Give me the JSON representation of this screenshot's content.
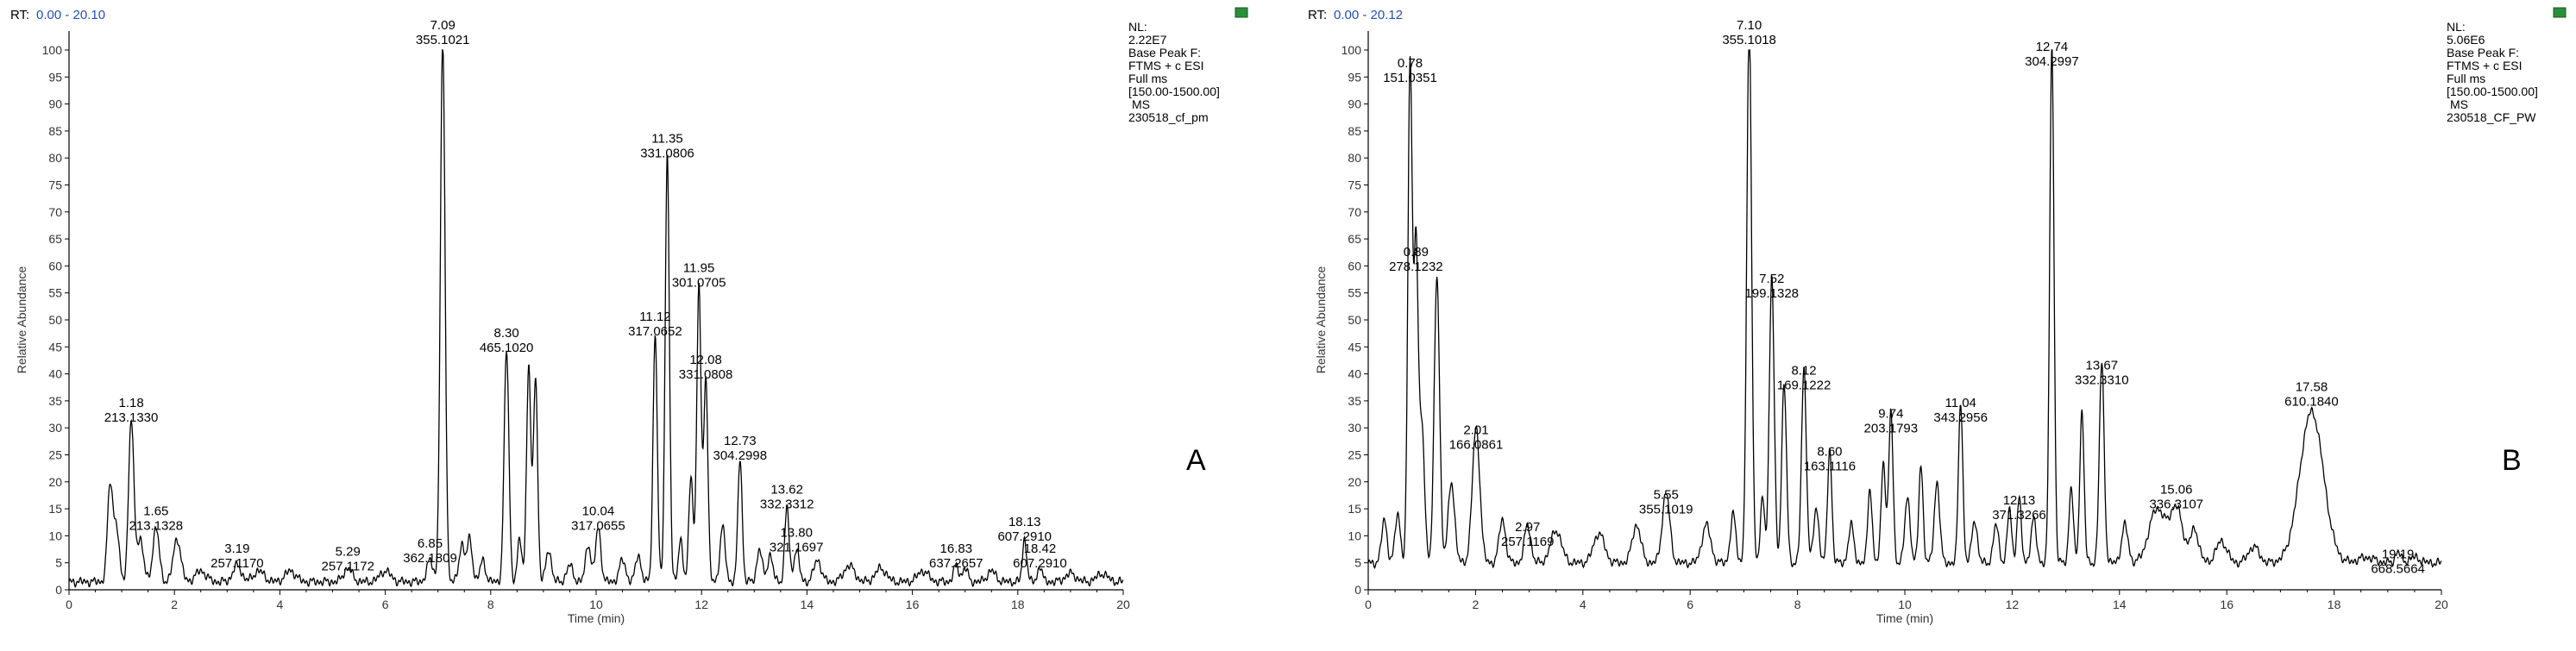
{
  "colors": {
    "trace": "#000000",
    "rt": "#1f4fbf",
    "frame": "#000000",
    "tick_label": "#333333"
  },
  "chart_data": [
    {
      "type": "line",
      "panel_letter": "A",
      "rt_label": "RT:",
      "rt_range": "0.00 - 20.10",
      "xlabel": "Time (min)",
      "ylabel": "Relative Abundance",
      "xlim": [
        0,
        20
      ],
      "ylim": [
        0,
        100
      ],
      "x_ticks": [
        "0",
        "2",
        "4",
        "6",
        "8",
        "10",
        "12",
        "14",
        "16",
        "18",
        "20"
      ],
      "y_ticks": [
        "0",
        "5",
        "10",
        "15",
        "20",
        "25",
        "30",
        "35",
        "40",
        "45",
        "50",
        "55",
        "60",
        "65",
        "70",
        "75",
        "80",
        "85",
        "90",
        "95",
        "100"
      ],
      "info": [
        "NL:",
        "2.22E7",
        "Base Peak F:",
        "FTMS + c ESI",
        "Full ms",
        "[150.00-1500.00]",
        "MS",
        "230518_cf_pm"
      ],
      "baseline": 1.5,
      "peaks": [
        {
          "x": 0.78,
          "y": 18,
          "w": 0.05
        },
        {
          "x": 0.9,
          "y": 10,
          "w": 0.05
        },
        {
          "x": 1.18,
          "y": 30,
          "w": 0.05
        },
        {
          "x": 1.35,
          "y": 8,
          "w": 0.06
        },
        {
          "x": 1.65,
          "y": 10,
          "w": 0.06
        },
        {
          "x": 2.05,
          "y": 8,
          "w": 0.07
        },
        {
          "x": 2.5,
          "y": 2,
          "w": 0.1
        },
        {
          "x": 3.19,
          "y": 3,
          "w": 0.08
        },
        {
          "x": 3.6,
          "y": 2,
          "w": 0.1
        },
        {
          "x": 4.2,
          "y": 2,
          "w": 0.1
        },
        {
          "x": 5.29,
          "y": 2.5,
          "w": 0.08
        },
        {
          "x": 6.0,
          "y": 2,
          "w": 0.1
        },
        {
          "x": 6.85,
          "y": 4,
          "w": 0.06
        },
        {
          "x": 7.09,
          "y": 100,
          "w": 0.045
        },
        {
          "x": 7.45,
          "y": 7,
          "w": 0.05
        },
        {
          "x": 7.6,
          "y": 8,
          "w": 0.05
        },
        {
          "x": 7.85,
          "y": 4,
          "w": 0.05
        },
        {
          "x": 8.3,
          "y": 43,
          "w": 0.045
        },
        {
          "x": 8.55,
          "y": 8,
          "w": 0.04
        },
        {
          "x": 8.72,
          "y": 40,
          "w": 0.04
        },
        {
          "x": 8.85,
          "y": 38,
          "w": 0.04
        },
        {
          "x": 9.1,
          "y": 6,
          "w": 0.05
        },
        {
          "x": 9.5,
          "y": 3,
          "w": 0.06
        },
        {
          "x": 9.85,
          "y": 7,
          "w": 0.05
        },
        {
          "x": 10.04,
          "y": 10,
          "w": 0.05
        },
        {
          "x": 10.5,
          "y": 4,
          "w": 0.06
        },
        {
          "x": 10.8,
          "y": 5,
          "w": 0.05
        },
        {
          "x": 11.12,
          "y": 46,
          "w": 0.04
        },
        {
          "x": 11.35,
          "y": 79,
          "w": 0.04
        },
        {
          "x": 11.6,
          "y": 8,
          "w": 0.04
        },
        {
          "x": 11.8,
          "y": 20,
          "w": 0.04
        },
        {
          "x": 11.95,
          "y": 55,
          "w": 0.04
        },
        {
          "x": 12.08,
          "y": 38,
          "w": 0.04
        },
        {
          "x": 12.4,
          "y": 10,
          "w": 0.05
        },
        {
          "x": 12.73,
          "y": 23,
          "w": 0.04
        },
        {
          "x": 13.1,
          "y": 6,
          "w": 0.05
        },
        {
          "x": 13.3,
          "y": 5,
          "w": 0.05
        },
        {
          "x": 13.62,
          "y": 14,
          "w": 0.04
        },
        {
          "x": 13.8,
          "y": 6,
          "w": 0.05
        },
        {
          "x": 14.2,
          "y": 4,
          "w": 0.07
        },
        {
          "x": 14.8,
          "y": 3,
          "w": 0.1
        },
        {
          "x": 15.4,
          "y": 2.5,
          "w": 0.1
        },
        {
          "x": 16.2,
          "y": 2,
          "w": 0.1
        },
        {
          "x": 16.83,
          "y": 3,
          "w": 0.05
        },
        {
          "x": 17.0,
          "y": 2.5,
          "w": 0.05
        },
        {
          "x": 17.5,
          "y": 2,
          "w": 0.08
        },
        {
          "x": 18.13,
          "y": 8,
          "w": 0.04
        },
        {
          "x": 18.42,
          "y": 3,
          "w": 0.04
        },
        {
          "x": 19.0,
          "y": 1.5,
          "w": 0.1
        },
        {
          "x": 19.6,
          "y": 1.5,
          "w": 0.1
        }
      ],
      "annotations": [
        {
          "x": 1.18,
          "y": 30,
          "rt": "1.18",
          "mz": "213.1330"
        },
        {
          "x": 1.65,
          "y": 10,
          "rt": "1.65",
          "mz": "213.1328"
        },
        {
          "x": 3.19,
          "y": 3,
          "rt": "3.19",
          "mz": "257.1170"
        },
        {
          "x": 5.29,
          "y": 2.5,
          "rt": "5.29",
          "mz": "257.1172"
        },
        {
          "x": 6.85,
          "y": 4,
          "rt": "6.85",
          "mz": "362.1809"
        },
        {
          "x": 7.09,
          "y": 100,
          "rt": "7.09",
          "mz": "355.1021"
        },
        {
          "x": 8.3,
          "y": 43,
          "rt": "8.30",
          "mz": "465.1020"
        },
        {
          "x": 10.04,
          "y": 10,
          "rt": "10.04",
          "mz": "317.0655"
        },
        {
          "x": 11.12,
          "y": 46,
          "rt": "11.12",
          "mz": "317.0652"
        },
        {
          "x": 11.35,
          "y": 79,
          "rt": "11.35",
          "mz": "331.0806"
        },
        {
          "x": 11.95,
          "y": 55,
          "rt": "11.95",
          "mz": "301.0705"
        },
        {
          "x": 12.08,
          "y": 38,
          "rt": "12.08",
          "mz": "331.0808"
        },
        {
          "x": 12.73,
          "y": 23,
          "rt": "12.73",
          "mz": "304.2998"
        },
        {
          "x": 13.62,
          "y": 14,
          "rt": "13.62",
          "mz": "332.3312"
        },
        {
          "x": 13.8,
          "y": 6,
          "rt": "13.80",
          "mz": "321.1697"
        },
        {
          "x": 16.83,
          "y": 3,
          "rt": "16.83",
          "mz": "637.2657"
        },
        {
          "x": 18.13,
          "y": 8,
          "rt": "18.13",
          "mz": "607.2910"
        },
        {
          "x": 18.42,
          "y": 3,
          "rt": "18.42",
          "mz": "607.2910"
        }
      ]
    },
    {
      "type": "line",
      "panel_letter": "B",
      "rt_label": "RT:",
      "rt_range": "0.00 - 20.12",
      "xlabel": "Time (min)",
      "ylabel": "Relative Abundance",
      "xlim": [
        0,
        20
      ],
      "ylim": [
        0,
        100
      ],
      "x_ticks": [
        "0",
        "2",
        "4",
        "6",
        "8",
        "10",
        "12",
        "14",
        "16",
        "18",
        "20"
      ],
      "y_ticks": [
        "0",
        "5",
        "10",
        "15",
        "20",
        "25",
        "30",
        "35",
        "40",
        "45",
        "50",
        "55",
        "60",
        "65",
        "70",
        "75",
        "80",
        "85",
        "90",
        "95",
        "100"
      ],
      "info": [
        "NL:",
        "5.06E6",
        "Base Peak F:",
        "FTMS + c ESI",
        "Full ms",
        "[150.00-1500.00]",
        "MS",
        "230518_CF_PW"
      ],
      "baseline": 5,
      "peaks": [
        {
          "x": 0.3,
          "y": 8,
          "w": 0.05
        },
        {
          "x": 0.55,
          "y": 9,
          "w": 0.05
        },
        {
          "x": 0.78,
          "y": 93,
          "w": 0.04
        },
        {
          "x": 0.89,
          "y": 58,
          "w": 0.04
        },
        {
          "x": 1.0,
          "y": 25,
          "w": 0.05
        },
        {
          "x": 1.28,
          "y": 53,
          "w": 0.05
        },
        {
          "x": 1.55,
          "y": 15,
          "w": 0.06
        },
        {
          "x": 2.01,
          "y": 25,
          "w": 0.07
        },
        {
          "x": 2.5,
          "y": 8,
          "w": 0.06
        },
        {
          "x": 2.97,
          "y": 7,
          "w": 0.06
        },
        {
          "x": 3.5,
          "y": 6,
          "w": 0.1
        },
        {
          "x": 4.3,
          "y": 5.5,
          "w": 0.1
        },
        {
          "x": 5.0,
          "y": 7,
          "w": 0.08
        },
        {
          "x": 5.55,
          "y": 13,
          "w": 0.07
        },
        {
          "x": 6.3,
          "y": 7,
          "w": 0.08
        },
        {
          "x": 6.8,
          "y": 9,
          "w": 0.05
        },
        {
          "x": 7.1,
          "y": 100,
          "w": 0.045
        },
        {
          "x": 7.35,
          "y": 12,
          "w": 0.04
        },
        {
          "x": 7.52,
          "y": 53,
          "w": 0.045
        },
        {
          "x": 7.75,
          "y": 33,
          "w": 0.045
        },
        {
          "x": 8.12,
          "y": 36,
          "w": 0.045
        },
        {
          "x": 8.35,
          "y": 10,
          "w": 0.05
        },
        {
          "x": 8.6,
          "y": 21,
          "w": 0.04
        },
        {
          "x": 9.0,
          "y": 7,
          "w": 0.05
        },
        {
          "x": 9.35,
          "y": 14,
          "w": 0.04
        },
        {
          "x": 9.6,
          "y": 19,
          "w": 0.04
        },
        {
          "x": 9.74,
          "y": 28,
          "w": 0.04
        },
        {
          "x": 10.05,
          "y": 12,
          "w": 0.05
        },
        {
          "x": 10.3,
          "y": 18,
          "w": 0.04
        },
        {
          "x": 10.6,
          "y": 15,
          "w": 0.05
        },
        {
          "x": 11.04,
          "y": 30,
          "w": 0.04
        },
        {
          "x": 11.3,
          "y": 8,
          "w": 0.05
        },
        {
          "x": 11.7,
          "y": 7,
          "w": 0.05
        },
        {
          "x": 11.95,
          "y": 10,
          "w": 0.04
        },
        {
          "x": 12.13,
          "y": 12,
          "w": 0.04
        },
        {
          "x": 12.4,
          "y": 8,
          "w": 0.05
        },
        {
          "x": 12.74,
          "y": 96,
          "w": 0.04
        },
        {
          "x": 13.1,
          "y": 14,
          "w": 0.04
        },
        {
          "x": 13.3,
          "y": 28,
          "w": 0.04
        },
        {
          "x": 13.67,
          "y": 37,
          "w": 0.045
        },
        {
          "x": 14.1,
          "y": 7,
          "w": 0.06
        },
        {
          "x": 14.7,
          "y": 10,
          "w": 0.15
        },
        {
          "x": 15.06,
          "y": 10,
          "w": 0.12
        },
        {
          "x": 15.4,
          "y": 6,
          "w": 0.08
        },
        {
          "x": 15.9,
          "y": 4,
          "w": 0.1
        },
        {
          "x": 16.5,
          "y": 3,
          "w": 0.1
        },
        {
          "x": 17.58,
          "y": 28,
          "w": 0.22
        },
        {
          "x": 18.6,
          "y": 1,
          "w": 0.15
        },
        {
          "x": 19.19,
          "y": 2,
          "w": 0.05
        },
        {
          "x": 19.5,
          "y": 1,
          "w": 0.1
        }
      ],
      "annotations": [
        {
          "x": 0.78,
          "y": 93,
          "rt": "0.78",
          "mz": "151.0351"
        },
        {
          "x": 0.89,
          "y": 58,
          "rt": "0.89",
          "mz": "278.1232"
        },
        {
          "x": 2.01,
          "y": 25,
          "rt": "2.01",
          "mz": "166.0861"
        },
        {
          "x": 2.97,
          "y": 7,
          "rt": "2.97",
          "mz": "257.1169"
        },
        {
          "x": 5.55,
          "y": 13,
          "rt": "5.55",
          "mz": "355.1019"
        },
        {
          "x": 7.1,
          "y": 100,
          "rt": "7.10",
          "mz": "355.1018"
        },
        {
          "x": 7.52,
          "y": 53,
          "rt": "7.52",
          "mz": "199.1328"
        },
        {
          "x": 8.12,
          "y": 36,
          "rt": "8.12",
          "mz": "169.1222"
        },
        {
          "x": 8.6,
          "y": 21,
          "rt": "8.60",
          "mz": "163.1116"
        },
        {
          "x": 9.74,
          "y": 28,
          "rt": "9.74",
          "mz": "203.1793"
        },
        {
          "x": 11.04,
          "y": 30,
          "rt": "11.04",
          "mz": "343.2956"
        },
        {
          "x": 12.13,
          "y": 12,
          "rt": "12.13",
          "mz": "371.3266"
        },
        {
          "x": 12.74,
          "y": 96,
          "rt": "12.74",
          "mz": "304.2997"
        },
        {
          "x": 13.67,
          "y": 37,
          "rt": "13.67",
          "mz": "332.3310"
        },
        {
          "x": 15.06,
          "y": 14,
          "rt": "15.06",
          "mz": "336.3107"
        },
        {
          "x": 17.58,
          "y": 33,
          "rt": "17.58",
          "mz": "610.1840"
        },
        {
          "x": 19.19,
          "y": 2,
          "rt": "19.19",
          "mz": "668.5664"
        }
      ]
    }
  ]
}
